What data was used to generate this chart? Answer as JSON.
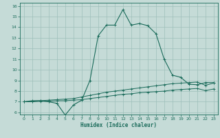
{
  "xlabel": "Humidex (Indice chaleur)",
  "bg_color": "#c5dbd7",
  "grid_color": "#9dbfba",
  "line_color": "#1a6b5a",
  "xlim": [
    -0.5,
    23.5
  ],
  "ylim": [
    5.8,
    16.3
  ],
  "xticks": [
    0,
    1,
    2,
    3,
    4,
    5,
    6,
    7,
    8,
    9,
    10,
    11,
    12,
    13,
    14,
    15,
    16,
    17,
    18,
    19,
    20,
    21,
    22,
    23
  ],
  "yticks": [
    6,
    7,
    8,
    9,
    10,
    11,
    12,
    13,
    14,
    15,
    16
  ],
  "line1_x": [
    0,
    1,
    2,
    3,
    4,
    5,
    6,
    7,
    8,
    9,
    10,
    11,
    12,
    13,
    14,
    15,
    16,
    17,
    18,
    19,
    20,
    21,
    22,
    23
  ],
  "line1_y": [
    7.0,
    7.1,
    7.1,
    7.0,
    6.85,
    5.75,
    6.7,
    7.15,
    9.0,
    13.2,
    14.2,
    14.2,
    15.65,
    14.2,
    14.35,
    14.15,
    13.4,
    11.0,
    9.5,
    9.3,
    8.65,
    8.6,
    8.8,
    8.8
  ],
  "line2_x": [
    0,
    1,
    2,
    3,
    4,
    5,
    6,
    7,
    8,
    9,
    10,
    11,
    12,
    13,
    14,
    15,
    16,
    17,
    18,
    19,
    20,
    21,
    22,
    23
  ],
  "line2_y": [
    7.0,
    7.05,
    7.1,
    7.15,
    7.2,
    7.25,
    7.3,
    7.45,
    7.6,
    7.75,
    7.9,
    8.0,
    8.1,
    8.2,
    8.3,
    8.4,
    8.5,
    8.6,
    8.7,
    8.75,
    8.8,
    8.85,
    8.55,
    8.75
  ],
  "line3_x": [
    0,
    1,
    2,
    3,
    4,
    5,
    6,
    7,
    8,
    9,
    10,
    11,
    12,
    13,
    14,
    15,
    16,
    17,
    18,
    19,
    20,
    21,
    22,
    23
  ],
  "line3_y": [
    7.0,
    7.0,
    7.05,
    7.05,
    7.1,
    7.1,
    7.15,
    7.2,
    7.3,
    7.4,
    7.5,
    7.6,
    7.7,
    7.75,
    7.85,
    7.9,
    7.95,
    8.0,
    8.1,
    8.15,
    8.2,
    8.25,
    8.05,
    8.2
  ]
}
